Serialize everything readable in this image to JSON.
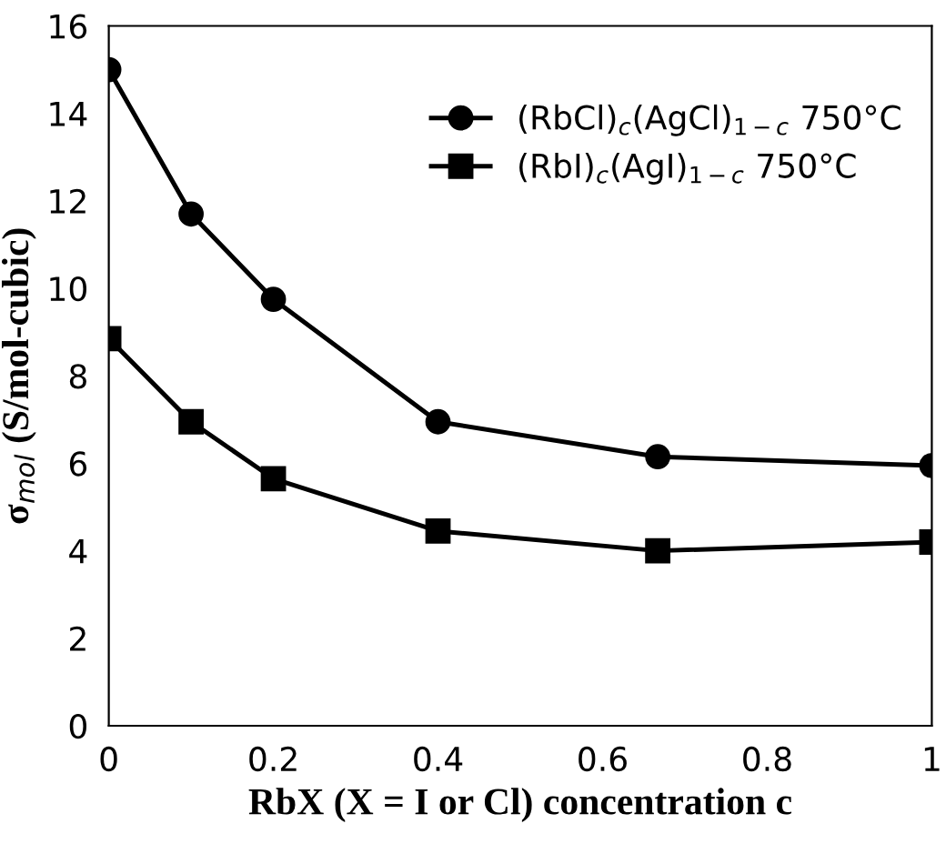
{
  "chart_data": {
    "type": "line",
    "xlabel": "RbX (X = I or Cl) concentration c",
    "ylabel": "σ$_{mol}$ (S/mol-cubic)",
    "x": [
      0,
      0.1,
      0.2,
      0.4,
      0.667,
      1
    ],
    "series": [
      {
        "name": "(RbCl)$_{c}$(AgCl)$_{1−c}$ 750°C",
        "color": "#000000",
        "marker": "circle",
        "values": [
          15.0,
          11.7,
          9.75,
          6.95,
          6.15,
          5.95
        ]
      },
      {
        "name": "(RbI)$_{c}$(AgI)$_{1−c}$ 750°C",
        "color": "#000000",
        "marker": "square",
        "values": [
          8.85,
          6.95,
          5.65,
          4.45,
          4.0,
          4.2
        ]
      }
    ],
    "xlim": [
      0,
      1
    ],
    "xticks": [
      0,
      0.2,
      0.4,
      0.6,
      0.8,
      1
    ],
    "ylim": [
      0,
      16
    ],
    "yticks": [
      0,
      2,
      4,
      6,
      8,
      10,
      12,
      14,
      16
    ],
    "grid": false,
    "legend": "top right",
    "line_style": "solid"
  }
}
